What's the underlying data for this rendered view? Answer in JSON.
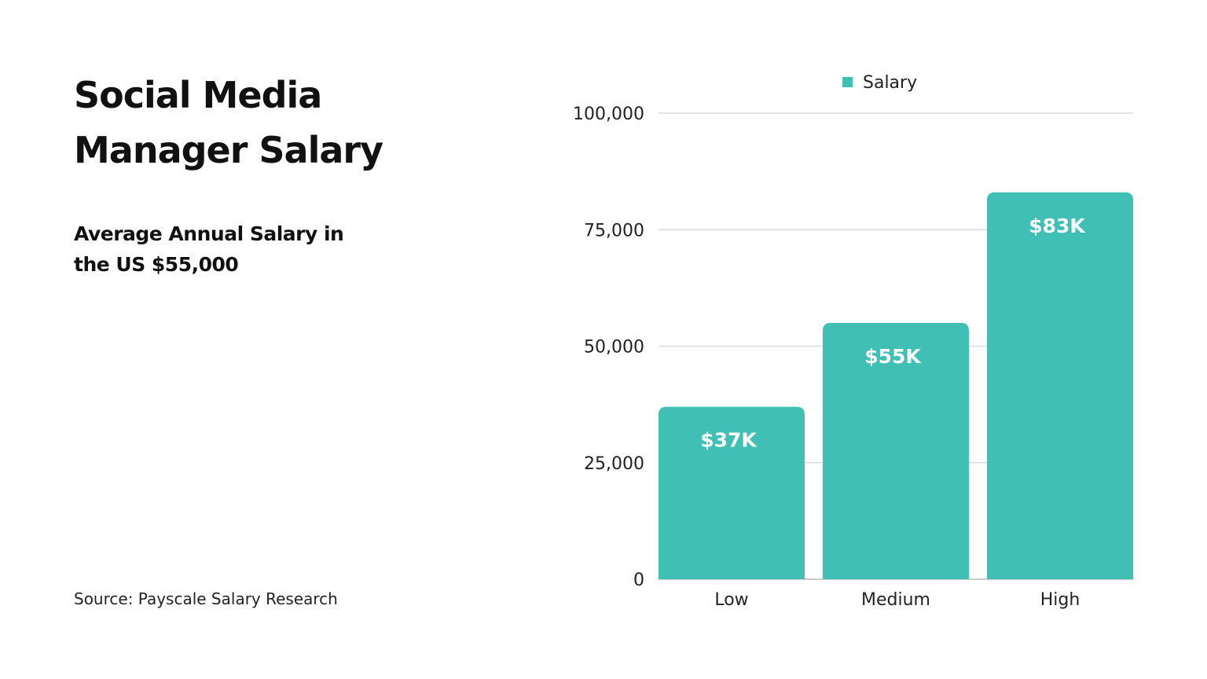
{
  "title": "Social Media Manager Salary",
  "subtitle": "Average Annual Salary in the US $55,000",
  "source": "Source: Payscale Salary Research",
  "chart_data": {
    "type": "bar",
    "categories": [
      "Low",
      "Medium",
      "High"
    ],
    "series": [
      {
        "name": "Salary",
        "values": [
          37000,
          55000,
          83000
        ],
        "data_labels": [
          "$37K",
          "$55K",
          "$83K"
        ],
        "color": "#40bfb5"
      }
    ],
    "ylim": [
      0,
      100000
    ],
    "yticks": [
      0,
      25000,
      50000,
      75000,
      100000
    ],
    "ytick_labels": [
      "0",
      "25,000",
      "50,000",
      "75,000",
      "100,000"
    ],
    "grid": true,
    "legend": "top"
  }
}
